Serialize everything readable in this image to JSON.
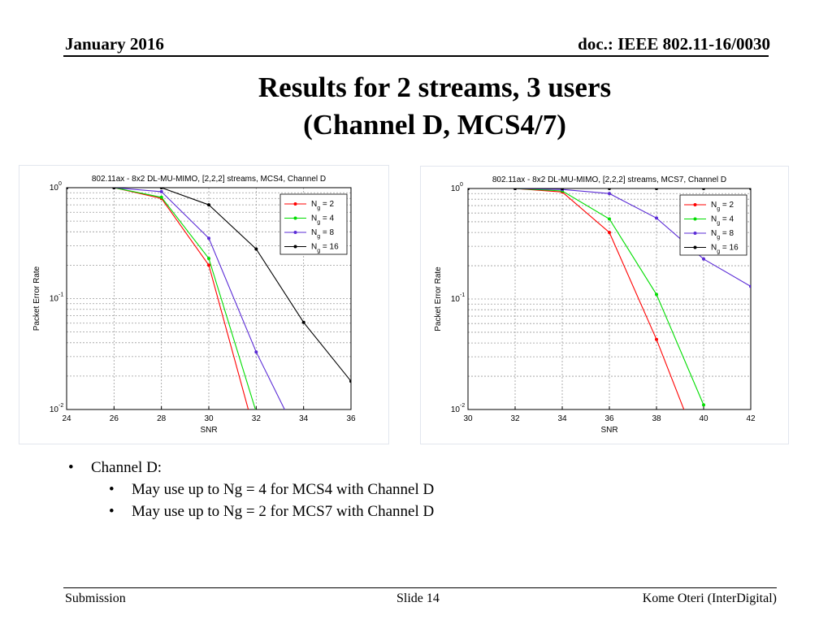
{
  "header": {
    "date": "January 2016",
    "doc": "doc.: IEEE 802.11-16/0030"
  },
  "title": {
    "line1": "Results for 2 streams, 3 users",
    "line2": "(Channel D, MCS4/7)"
  },
  "chart_data": [
    {
      "type": "line",
      "title": "802.11ax - 8x2 DL-MU-MIMO, [2,2,2] streams, MCS4, Channel D",
      "xlabel": "SNR",
      "ylabel": "Packet Error Rate",
      "yscale": "log",
      "xlim": [
        24,
        36
      ],
      "ylim": [
        0.01,
        1
      ],
      "x_ticks": [
        "24",
        "26",
        "28",
        "30",
        "32",
        "34",
        "36"
      ],
      "grid": true,
      "legend_position": "top-right",
      "x": [
        24,
        26,
        28,
        30,
        32,
        34,
        36
      ],
      "series": [
        {
          "name": "N_g = 2",
          "color": "#ff0000",
          "values": [
            1,
            1,
            0.8,
            0.2,
            0.0055,
            null,
            null
          ]
        },
        {
          "name": "N_g = 4",
          "color": "#00dd00",
          "values": [
            1,
            1,
            0.82,
            0.23,
            0.0095,
            null,
            null
          ]
        },
        {
          "name": "N_g = 8",
          "color": "#5a2bd6",
          "values": [
            1,
            1,
            0.92,
            0.35,
            0.033,
            0.0045,
            null
          ]
        },
        {
          "name": "N_g = 16",
          "color": "#000000",
          "values": [
            1,
            1,
            1,
            0.7,
            0.28,
            0.061,
            0.018
          ]
        }
      ]
    },
    {
      "type": "line",
      "title": "802.11ax - 8x2 DL-MU-MIMO, [2,2,2] streams, MCS7, Channel D",
      "xlabel": "SNR",
      "ylabel": "Packet Error Rate",
      "yscale": "log",
      "xlim": [
        30,
        42
      ],
      "ylim": [
        0.01,
        1
      ],
      "x_ticks": [
        "30",
        "32",
        "34",
        "36",
        "38",
        "40",
        "42"
      ],
      "grid": true,
      "legend_position": "top-right",
      "x": [
        30,
        32,
        34,
        36,
        38,
        40,
        42
      ],
      "series": [
        {
          "name": "N_g = 2",
          "color": "#ff0000",
          "values": [
            1,
            1,
            0.93,
            0.4,
            0.043,
            0.0035,
            null
          ]
        },
        {
          "name": "N_g = 4",
          "color": "#00dd00",
          "values": [
            1,
            1,
            0.95,
            0.53,
            0.11,
            0.011,
            null
          ]
        },
        {
          "name": "N_g = 8",
          "color": "#5a2bd6",
          "values": [
            1,
            1,
            0.98,
            0.9,
            0.54,
            0.23,
            0.13
          ]
        },
        {
          "name": "N_g = 16",
          "color": "#000000",
          "values": [
            1,
            1,
            1,
            1,
            1,
            1,
            1
          ]
        }
      ]
    }
  ],
  "bullets": {
    "main": "Channel D:",
    "sub1": "May use up to Ng = 4 for MCS4 with Channel D",
    "sub2": "May use up to Ng = 2 for MCS7 with Channel D"
  },
  "footer": {
    "left": "Submission",
    "center": "Slide 14",
    "right": "Kome Oteri (InterDigital)"
  }
}
